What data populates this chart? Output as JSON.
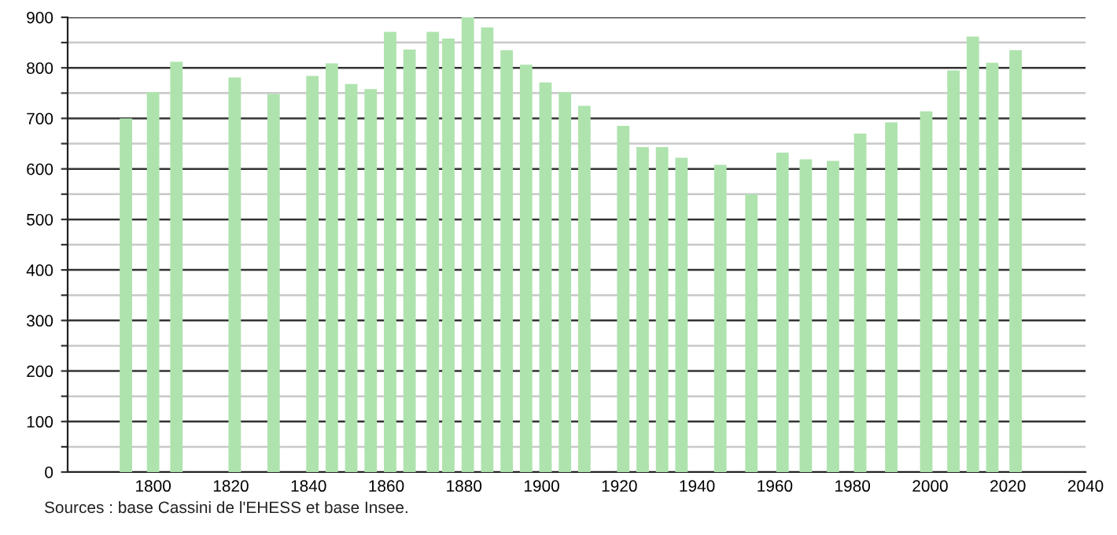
{
  "chart_data": {
    "type": "bar",
    "color": "#aee3ae",
    "x": [
      1793,
      1800,
      1806,
      1821,
      1831,
      1841,
      1846,
      1851,
      1856,
      1861,
      1866,
      1872,
      1876,
      1881,
      1886,
      1891,
      1896,
      1901,
      1906,
      1911,
      1921,
      1926,
      1931,
      1936,
      1946,
      1954,
      1962,
      1968,
      1975,
      1982,
      1990,
      1999,
      2006,
      2011,
      2016,
      2022
    ],
    "values": [
      700,
      752,
      812,
      781,
      748,
      784,
      809,
      768,
      758,
      871,
      836,
      871,
      858,
      900,
      880,
      835,
      806,
      771,
      752,
      725,
      685,
      643,
      643,
      622,
      608,
      550,
      632,
      619,
      616,
      670,
      692,
      714,
      795,
      862,
      810,
      835
    ],
    "xlim": [
      1778,
      2040
    ],
    "xticks": [
      1800,
      1820,
      1840,
      1860,
      1880,
      1900,
      1920,
      1940,
      1960,
      1980,
      2000,
      2020,
      2040
    ],
    "ylim": [
      0,
      900
    ],
    "yticks": [
      0,
      {
        "value": 50,
        "label": null
      },
      100,
      {
        "value": 150,
        "label": null
      },
      200,
      {
        "value": 250,
        "label": null
      },
      300,
      {
        "value": 350,
        "label": null
      },
      400,
      {
        "value": 450,
        "label": null
      },
      500,
      {
        "value": 550,
        "label": null
      },
      600,
      {
        "value": 650,
        "label": null
      },
      700,
      {
        "value": 750,
        "label": null
      },
      800,
      {
        "value": 850,
        "label": null
      },
      900
    ],
    "grid": "y",
    "annotations": [
      "Sources : base Cassini de l'EHESS et base Insee."
    ]
  }
}
